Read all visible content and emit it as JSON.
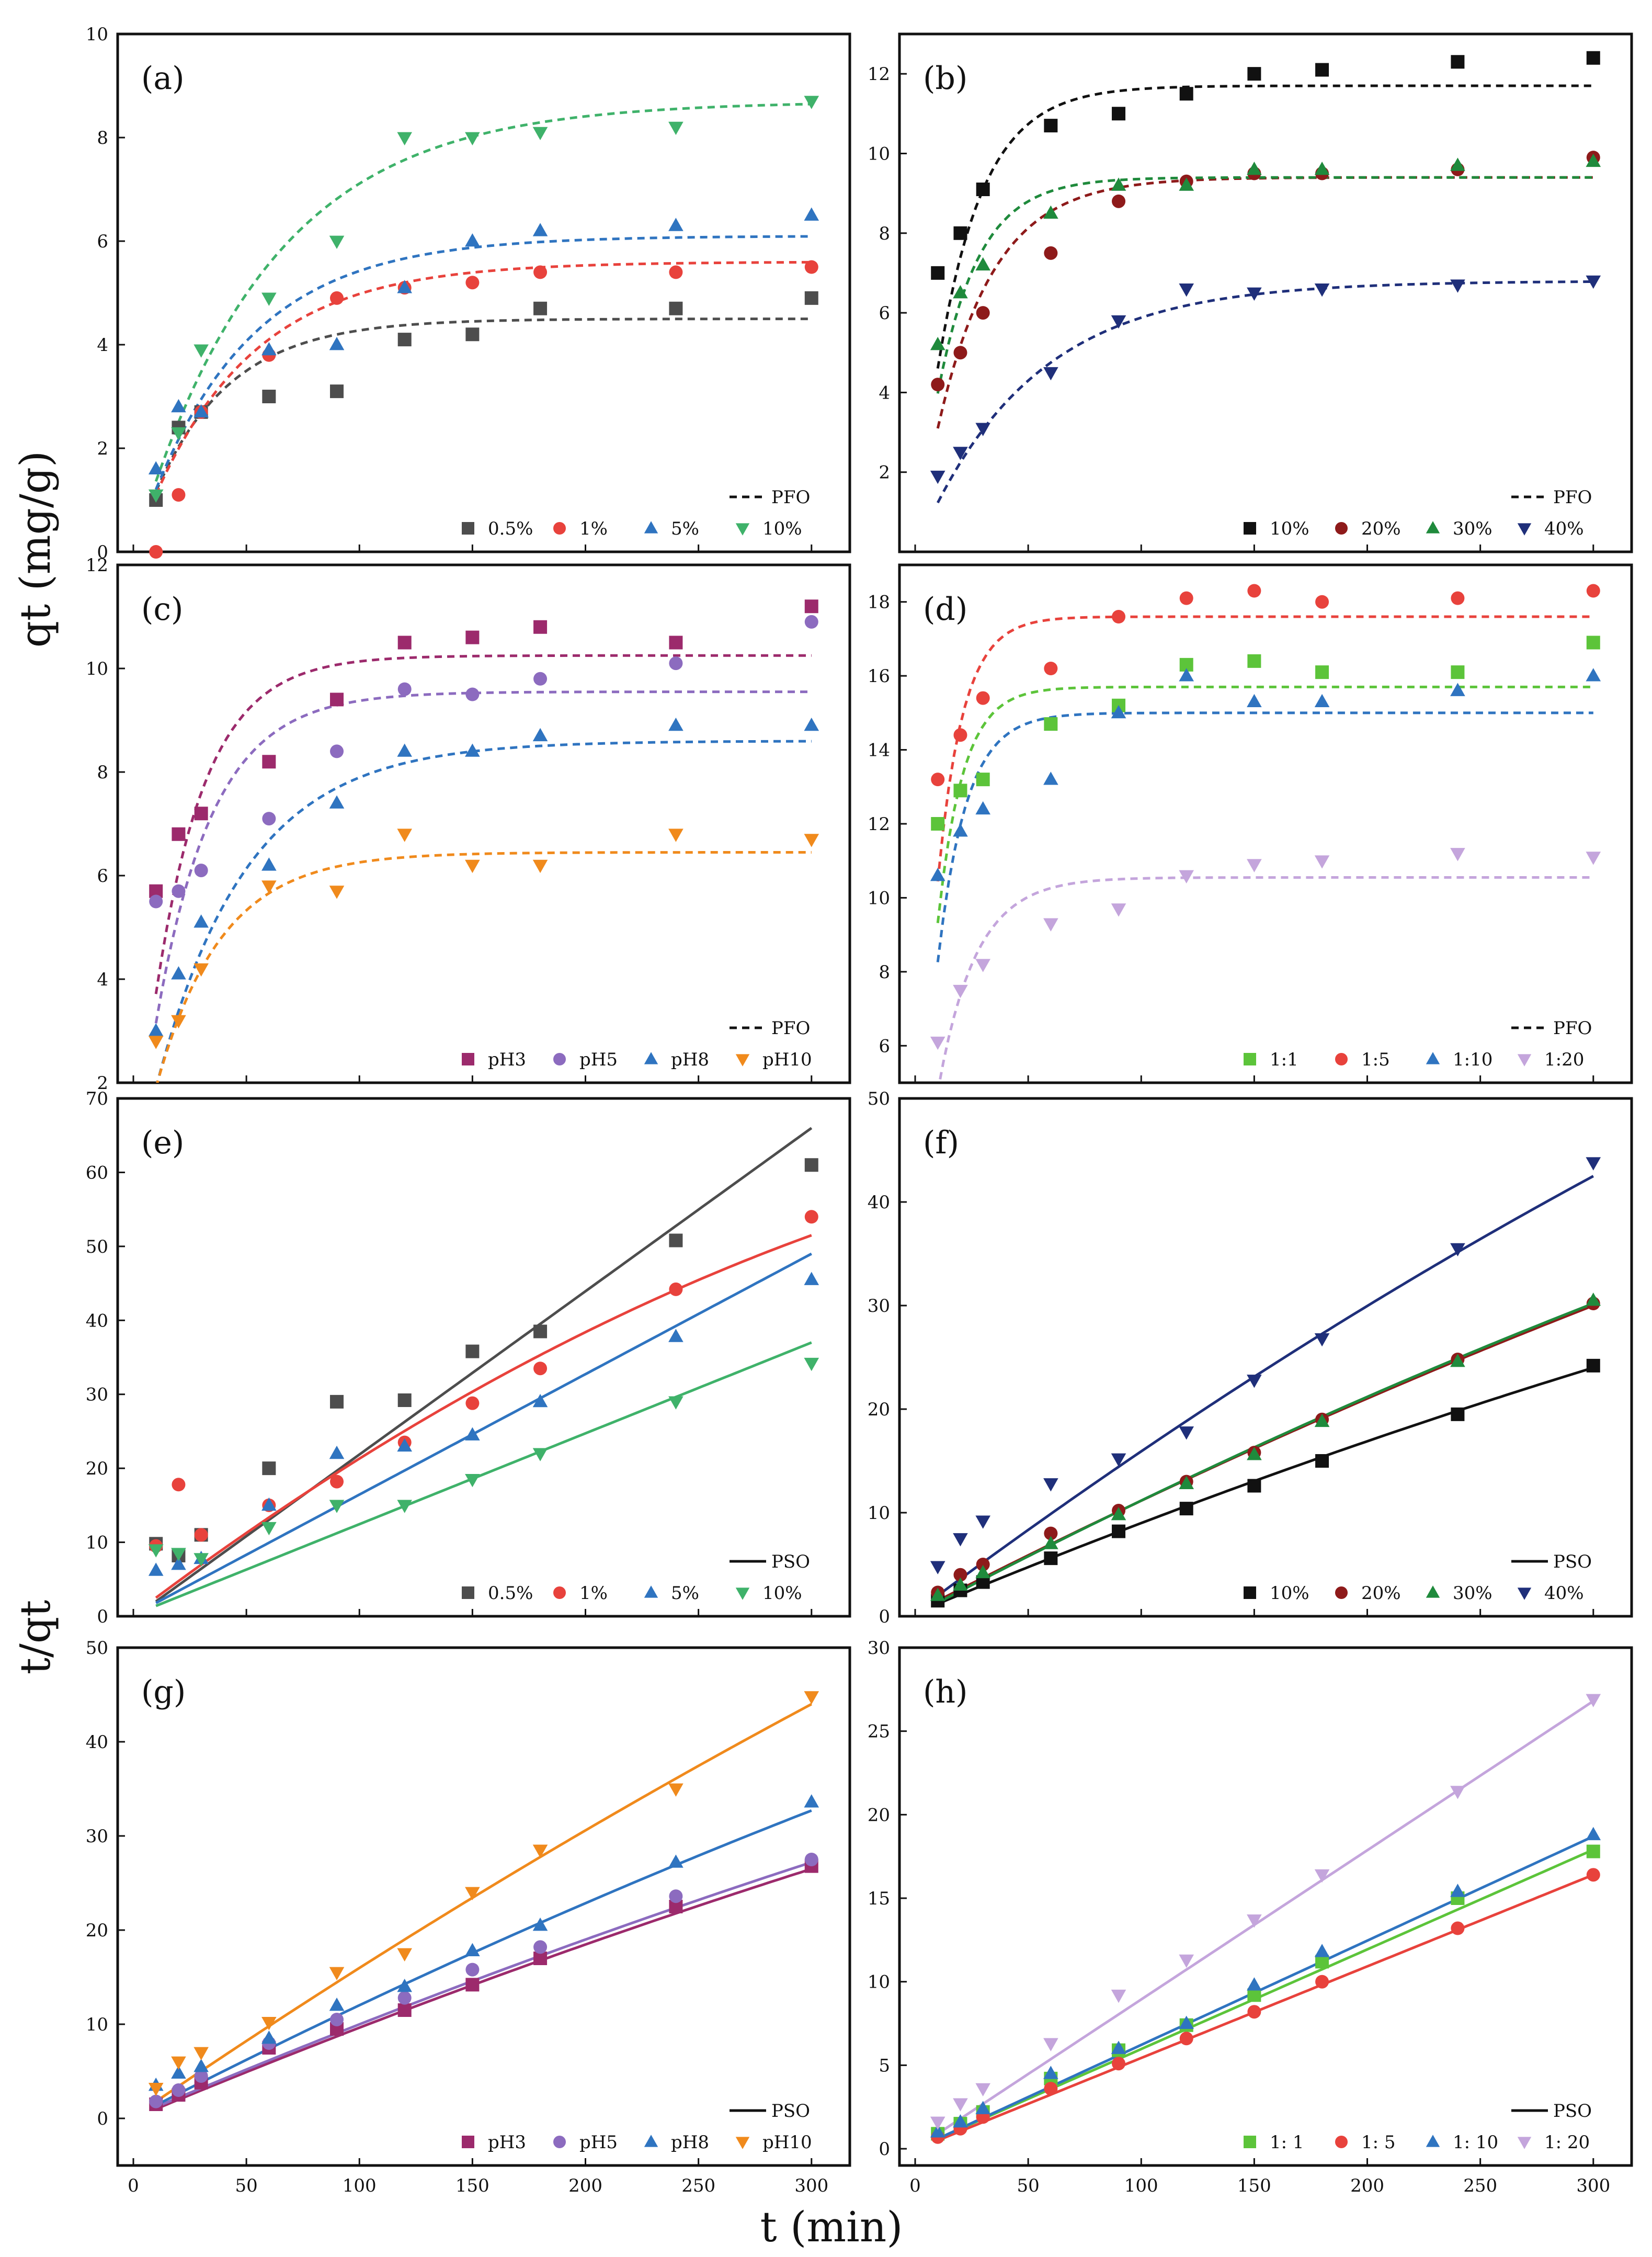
{
  "figure": {
    "ylabel_top": "qt (mg/g)",
    "ylabel_bottom": "t/qt",
    "xlabel": "t (min)"
  },
  "colors": {
    "black": "#111111",
    "gray": "#4d4d4d",
    "red": "#e8423c",
    "blue": "#2f74c0",
    "green": "#3fb26a",
    "darkred": "#8e1a1a",
    "dkgreen": "#1f8a3c",
    "navy": "#1f2f7a",
    "purple": "#9c2a6c",
    "lavender": "#8c6bbf",
    "orange": "#f08a1c",
    "lime": "#5cc43a",
    "lilac": "#c4a5dc"
  },
  "chart_data": [
    {
      "id": "a",
      "label": "(a)",
      "type": "scatter",
      "ylim": [
        0,
        10
      ],
      "yticks": [
        0,
        2,
        4,
        6,
        8,
        10
      ],
      "x": [
        10,
        20,
        30,
        60,
        90,
        120,
        150,
        180,
        240,
        300
      ],
      "fit_label": "PFO",
      "fit_style": "dashed",
      "fit_model": "pfo",
      "series": [
        {
          "name": "0.5%",
          "marker": "square",
          "color": "#4d4d4d",
          "values": [
            1.0,
            2.4,
            2.7,
            3.0,
            3.1,
            4.1,
            4.2,
            4.7,
            4.7,
            4.9
          ],
          "fit": {
            "qe": 4.5,
            "k": 0.03
          }
        },
        {
          "name": "1%",
          "marker": "circle",
          "color": "#e8423c",
          "values": [
            0.0,
            1.1,
            2.7,
            3.8,
            4.9,
            5.1,
            5.2,
            5.4,
            5.4,
            5.5
          ],
          "fit": {
            "qe": 5.6,
            "k": 0.022
          }
        },
        {
          "name": "5%",
          "marker": "triangle-up",
          "color": "#2f74c0",
          "values": [
            1.6,
            2.8,
            2.7,
            3.9,
            4.0,
            5.1,
            6.0,
            6.2,
            6.3,
            6.5
          ],
          "fit": {
            "qe": 6.1,
            "k": 0.022
          }
        },
        {
          "name": "10%",
          "marker": "triangle-down",
          "color": "#3fb26a",
          "values": [
            1.1,
            2.3,
            3.9,
            4.9,
            6.0,
            8.0,
            8.0,
            8.1,
            8.2,
            8.7
          ],
          "fit": {
            "qe": 8.7,
            "k": 0.017
          }
        }
      ]
    },
    {
      "id": "b",
      "label": "(b)",
      "type": "scatter",
      "ylim": [
        0,
        13
      ],
      "yticks": [
        2,
        4,
        6,
        8,
        10,
        12
      ],
      "x": [
        10,
        20,
        30,
        60,
        90,
        120,
        150,
        180,
        240,
        300
      ],
      "fit_label": "PFO",
      "fit_style": "dashed",
      "fit_model": "pfo",
      "series": [
        {
          "name": "10%",
          "marker": "square",
          "color": "#111111",
          "values": [
            7.0,
            8.0,
            9.1,
            10.7,
            11.0,
            11.5,
            12.0,
            12.1,
            12.3,
            12.4
          ],
          "fit": {
            "qe": 11.7,
            "k": 0.05
          }
        },
        {
          "name": "20%",
          "marker": "circle",
          "color": "#8e1a1a",
          "values": [
            4.2,
            5.0,
            6.0,
            7.5,
            8.8,
            9.3,
            9.5,
            9.5,
            9.6,
            9.9
          ],
          "fit": {
            "qe": 9.4,
            "k": 0.04
          }
        },
        {
          "name": "30%",
          "marker": "triangle-up",
          "color": "#1f8a3c",
          "values": [
            5.2,
            6.5,
            7.2,
            8.5,
            9.2,
            9.2,
            9.6,
            9.6,
            9.7,
            9.8
          ],
          "fit": {
            "qe": 9.4,
            "k": 0.055
          }
        },
        {
          "name": "40%",
          "marker": "triangle-down",
          "color": "#1f2f7a",
          "values": [
            1.9,
            2.5,
            3.1,
            4.5,
            5.8,
            6.6,
            6.5,
            6.6,
            6.7,
            6.8
          ],
          "fit": {
            "qe": 6.8,
            "k": 0.02
          }
        }
      ]
    },
    {
      "id": "c",
      "label": "(c)",
      "type": "scatter",
      "ylim": [
        2,
        12
      ],
      "yticks": [
        2,
        4,
        6,
        8,
        10,
        12
      ],
      "x": [
        10,
        20,
        30,
        60,
        90,
        120,
        150,
        180,
        240,
        300
      ],
      "fit_label": "PFO",
      "fit_style": "dashed",
      "fit_model": "pfo",
      "series": [
        {
          "name": "pH3",
          "marker": "square",
          "color": "#9c2a6c",
          "values": [
            5.7,
            6.8,
            7.2,
            8.2,
            9.4,
            10.5,
            10.6,
            10.8,
            10.5,
            11.2
          ],
          "fit": {
            "qe": 10.25,
            "k": 0.045
          }
        },
        {
          "name": "pH5",
          "marker": "circle",
          "color": "#8c6bbf",
          "values": [
            5.5,
            5.7,
            6.1,
            7.1,
            8.4,
            9.6,
            9.5,
            9.8,
            10.1,
            10.9
          ],
          "fit": {
            "qe": 9.55,
            "k": 0.04
          }
        },
        {
          "name": "pH8",
          "marker": "triangle-up",
          "color": "#2f74c0",
          "values": [
            3.0,
            4.1,
            5.1,
            6.2,
            7.4,
            8.4,
            8.4,
            8.7,
            8.9,
            8.9
          ],
          "fit": {
            "qe": 8.6,
            "k": 0.025
          }
        },
        {
          "name": "pH10",
          "marker": "triangle-down",
          "color": "#f08a1c",
          "values": [
            2.8,
            3.2,
            4.2,
            5.8,
            5.7,
            6.8,
            6.2,
            6.2,
            6.8,
            6.7
          ],
          "fit": {
            "qe": 6.45,
            "k": 0.035
          }
        }
      ]
    },
    {
      "id": "d",
      "label": "(d)",
      "type": "scatter",
      "ylim": [
        5,
        19
      ],
      "yticks": [
        6,
        8,
        10,
        12,
        14,
        16,
        18
      ],
      "x": [
        10,
        20,
        30,
        60,
        90,
        120,
        150,
        180,
        240,
        300
      ],
      "fit_label": "PFO",
      "fit_style": "dashed",
      "fit_model": "pfo",
      "series": [
        {
          "name": "1:1",
          "marker": "square",
          "color": "#5cc43a",
          "values": [
            12.0,
            12.9,
            13.2,
            14.7,
            15.2,
            16.3,
            16.4,
            16.1,
            16.1,
            16.9
          ],
          "fit": {
            "qe": 15.7,
            "k": 0.09
          }
        },
        {
          "name": "1:5",
          "marker": "circle",
          "color": "#e8423c",
          "values": [
            13.2,
            14.4,
            15.4,
            16.2,
            17.6,
            18.1,
            18.3,
            18.0,
            18.1,
            18.3
          ],
          "fit": {
            "qe": 17.6,
            "k": 0.09
          }
        },
        {
          "name": "1:10",
          "marker": "triangle-up",
          "color": "#2f74c0",
          "values": [
            10.6,
            11.8,
            12.4,
            13.2,
            15.0,
            16.0,
            15.3,
            15.3,
            15.6,
            16.0
          ],
          "fit": {
            "qe": 15.0,
            "k": 0.08
          }
        },
        {
          "name": "1:20",
          "marker": "triangle-down",
          "color": "#c4a5dc",
          "values": [
            6.1,
            7.5,
            8.2,
            9.3,
            9.7,
            10.6,
            10.9,
            11.0,
            11.2,
            11.1
          ],
          "fit": {
            "qe": 10.55,
            "k": 0.06
          }
        }
      ]
    },
    {
      "id": "e",
      "label": "(e)",
      "type": "scatter",
      "ylim": [
        0,
        70
      ],
      "yticks": [
        0,
        10,
        20,
        30,
        40,
        50,
        60,
        70
      ],
      "x": [
        10,
        20,
        30,
        60,
        90,
        120,
        150,
        180,
        240,
        300
      ],
      "fit_label": "PSO",
      "fit_style": "solid",
      "fit_model": "line",
      "series": [
        {
          "name": "0.5%",
          "marker": "square",
          "color": "#4d4d4d",
          "values": [
            9.8,
            8.2,
            11.0,
            20.0,
            29.0,
            29.2,
            35.8,
            38.5,
            50.8,
            61.0
          ],
          "fit": {
            "y0": 2.0,
            "y1": 66.0
          }
        },
        {
          "name": "1%",
          "marker": "circle",
          "color": "#e8423c",
          "values": [
            9.5,
            17.8,
            11.0,
            15.0,
            18.2,
            23.5,
            28.8,
            33.5,
            44.2,
            54.0
          ],
          "fit": {
            "y0": 2.5,
            "y1": 51.5,
            "c": 0.0004
          }
        },
        {
          "name": "5%",
          "marker": "triangle-up",
          "color": "#2f74c0",
          "values": [
            6.2,
            7.0,
            7.8,
            15.0,
            22.0,
            23.0,
            24.5,
            29.0,
            37.8,
            45.5
          ],
          "fit": {
            "y0": 1.8,
            "y1": 49.0
          }
        },
        {
          "name": "10%",
          "marker": "triangle-down",
          "color": "#3fb26a",
          "values": [
            9.0,
            8.5,
            7.8,
            12.0,
            15.0,
            15.0,
            18.5,
            22.0,
            29.0,
            34.2
          ],
          "fit": {
            "y0": 1.4,
            "y1": 37.0
          }
        }
      ]
    },
    {
      "id": "f",
      "label": "(f)",
      "type": "scatter",
      "ylim": [
        0,
        50
      ],
      "yticks": [
        0,
        10,
        20,
        30,
        40,
        50
      ],
      "x": [
        10,
        20,
        30,
        60,
        90,
        120,
        150,
        180,
        240,
        300
      ],
      "fit_label": "PSO",
      "fit_style": "solid",
      "fit_model": "line",
      "series": [
        {
          "name": "10%",
          "marker": "square",
          "color": "#111111",
          "values": [
            1.5,
            2.5,
            3.3,
            5.6,
            8.2,
            10.4,
            12.6,
            15.0,
            19.5,
            24.2
          ],
          "fit": {
            "y0": 1.2,
            "y1": 24.0,
            "c": 8e-05
          }
        },
        {
          "name": "20%",
          "marker": "circle",
          "color": "#8e1a1a",
          "values": [
            2.3,
            4.0,
            5.0,
            8.0,
            10.2,
            13.0,
            15.8,
            19.0,
            24.8,
            30.2
          ],
          "fit": {
            "y0": 1.5,
            "y1": 30.0,
            "c": 9e-05
          }
        },
        {
          "name": "30%",
          "marker": "triangle-up",
          "color": "#1f8a3c",
          "values": [
            2.0,
            3.0,
            4.2,
            7.0,
            9.8,
            12.8,
            15.6,
            18.8,
            24.6,
            30.5
          ],
          "fit": {
            "y0": 1.3,
            "y1": 30.2,
            "c": 0.0001
          }
        },
        {
          "name": "40%",
          "marker": "triangle-down",
          "color": "#1f2f7a",
          "values": [
            4.8,
            7.5,
            9.2,
            12.8,
            15.2,
            17.8,
            22.8,
            26.8,
            35.5,
            43.8
          ],
          "fit": {
            "y0": 2.0,
            "y1": 42.5,
            "c": 0.00015
          }
        }
      ]
    },
    {
      "id": "g",
      "label": "(g)",
      "type": "scatter",
      "ylim": [
        -5,
        50
      ],
      "yticks": [
        0,
        10,
        20,
        30,
        40,
        50
      ],
      "x": [
        10,
        20,
        30,
        60,
        90,
        120,
        150,
        180,
        240,
        300
      ],
      "fit_label": "PSO",
      "fit_style": "solid",
      "fit_model": "line",
      "series": [
        {
          "name": "pH3",
          "marker": "square",
          "color": "#9c2a6c",
          "values": [
            1.5,
            2.5,
            3.8,
            7.5,
            9.5,
            11.5,
            14.2,
            17.0,
            22.5,
            26.8
          ],
          "fit": {
            "y0": 1.0,
            "y1": 26.5,
            "c": 8e-05
          }
        },
        {
          "name": "pH5",
          "marker": "circle",
          "color": "#8c6bbf",
          "values": [
            1.8,
            3.0,
            4.5,
            8.0,
            10.5,
            12.8,
            15.8,
            18.2,
            23.6,
            27.5
          ],
          "fit": {
            "y0": 1.2,
            "y1": 27.2,
            "c": 8e-05
          }
        },
        {
          "name": "pH8",
          "marker": "triangle-up",
          "color": "#2f74c0",
          "values": [
            3.5,
            4.8,
            5.5,
            8.5,
            12.0,
            14.0,
            17.8,
            20.5,
            27.2,
            33.6
          ],
          "fit": {
            "y0": 1.4,
            "y1": 32.7,
            "c": 0.0001
          }
        },
        {
          "name": "pH10",
          "marker": "triangle-down",
          "color": "#f08a1c",
          "values": [
            3.2,
            6.0,
            7.0,
            10.2,
            15.5,
            17.5,
            24.0,
            28.5,
            35.0,
            44.8
          ],
          "fit": {
            "y0": 1.8,
            "y1": 44.0,
            "c": 0.00012
          }
        }
      ]
    },
    {
      "id": "h",
      "label": "(h)",
      "type": "scatter",
      "ylim": [
        -1,
        30
      ],
      "yticks": [
        0,
        5,
        10,
        15,
        20,
        25,
        30
      ],
      "x": [
        10,
        20,
        30,
        60,
        90,
        120,
        150,
        180,
        240,
        300
      ],
      "fit_label": "PSO",
      "fit_style": "solid",
      "fit_model": "line",
      "series": [
        {
          "name": "1:  1",
          "marker": "square",
          "color": "#5cc43a",
          "values": [
            0.9,
            1.5,
            2.2,
            4.2,
            5.9,
            7.4,
            9.2,
            11.2,
            15.0,
            17.8
          ],
          "fit": {
            "y0": 0.6,
            "y1": 17.9
          }
        },
        {
          "name": "1:  5",
          "marker": "circle",
          "color": "#e8423c",
          "values": [
            0.7,
            1.2,
            1.9,
            3.6,
            5.1,
            6.6,
            8.2,
            10.0,
            13.2,
            16.4
          ],
          "fit": {
            "y0": 0.5,
            "y1": 16.4
          }
        },
        {
          "name": "1:  10",
          "marker": "triangle-up",
          "color": "#2f74c0",
          "values": [
            1.0,
            1.6,
            2.4,
            4.5,
            6.0,
            7.5,
            9.8,
            11.8,
            15.4,
            18.8
          ],
          "fit": {
            "y0": 0.6,
            "y1": 18.7
          }
        },
        {
          "name": "1:  20",
          "marker": "triangle-down",
          "color": "#c4a5dc",
          "values": [
            1.6,
            2.7,
            3.6,
            6.3,
            9.2,
            11.3,
            13.7,
            16.4,
            21.4,
            26.9
          ],
          "fit": {
            "y0": 0.9,
            "y1": 26.8
          }
        }
      ]
    }
  ],
  "x_axis": {
    "xlim": [
      0,
      310
    ],
    "xticks": [
      0,
      50,
      100,
      150,
      200,
      250,
      300
    ]
  }
}
